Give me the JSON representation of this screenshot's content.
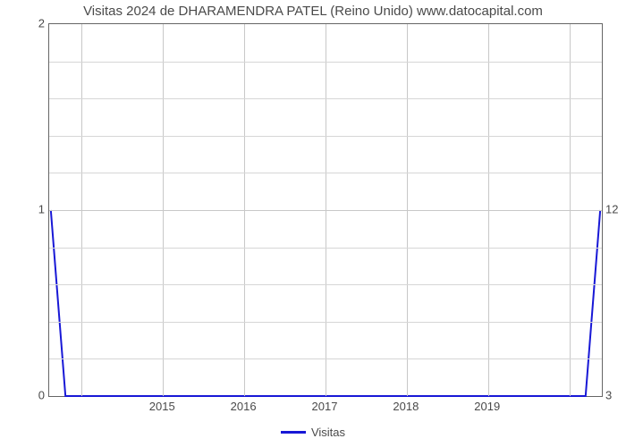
{
  "chart": {
    "type": "line",
    "title": "Visitas 2024 de DHARAMENDRA PATEL (Reino Unido) www.datocapital.com",
    "title_fontsize": 15,
    "title_color": "#4a4a4a",
    "background_color": "#ffffff",
    "plot_border_color": "#666666",
    "grid_color": "#c8c8c8",
    "minor_grid_color": "#d6d6d6",
    "x": {
      "min": 2013.6,
      "max": 2020.4,
      "ticks": [
        2015,
        2016,
        2017,
        2018,
        2019
      ],
      "minor_ticks": [
        2014,
        2020
      ],
      "tick_fontsize": 13,
      "tick_color": "#4a4a4a"
    },
    "y_left": {
      "min": 0,
      "max": 2,
      "ticks": [
        0,
        1,
        2
      ],
      "minor_step": 0.2,
      "tick_fontsize": 13,
      "tick_color": "#4a4a4a"
    },
    "y_right": {
      "labels": [
        {
          "text": "3",
          "at": 0
        },
        {
          "text": "12",
          "at": 1
        }
      ]
    },
    "series": {
      "name": "Visitas",
      "color": "#1818d6",
      "line_width": 2,
      "points": [
        {
          "x": 2013.62,
          "y": 1.0
        },
        {
          "x": 2013.8,
          "y": 0.0
        },
        {
          "x": 2020.2,
          "y": 0.0
        },
        {
          "x": 2020.38,
          "y": 1.0
        }
      ]
    },
    "legend": {
      "label": "Visitas",
      "swatch_color": "#1818d6",
      "swatch_width": 28,
      "swatch_line_width": 3,
      "fontsize": 13,
      "text_color": "#4a4a4a"
    }
  }
}
